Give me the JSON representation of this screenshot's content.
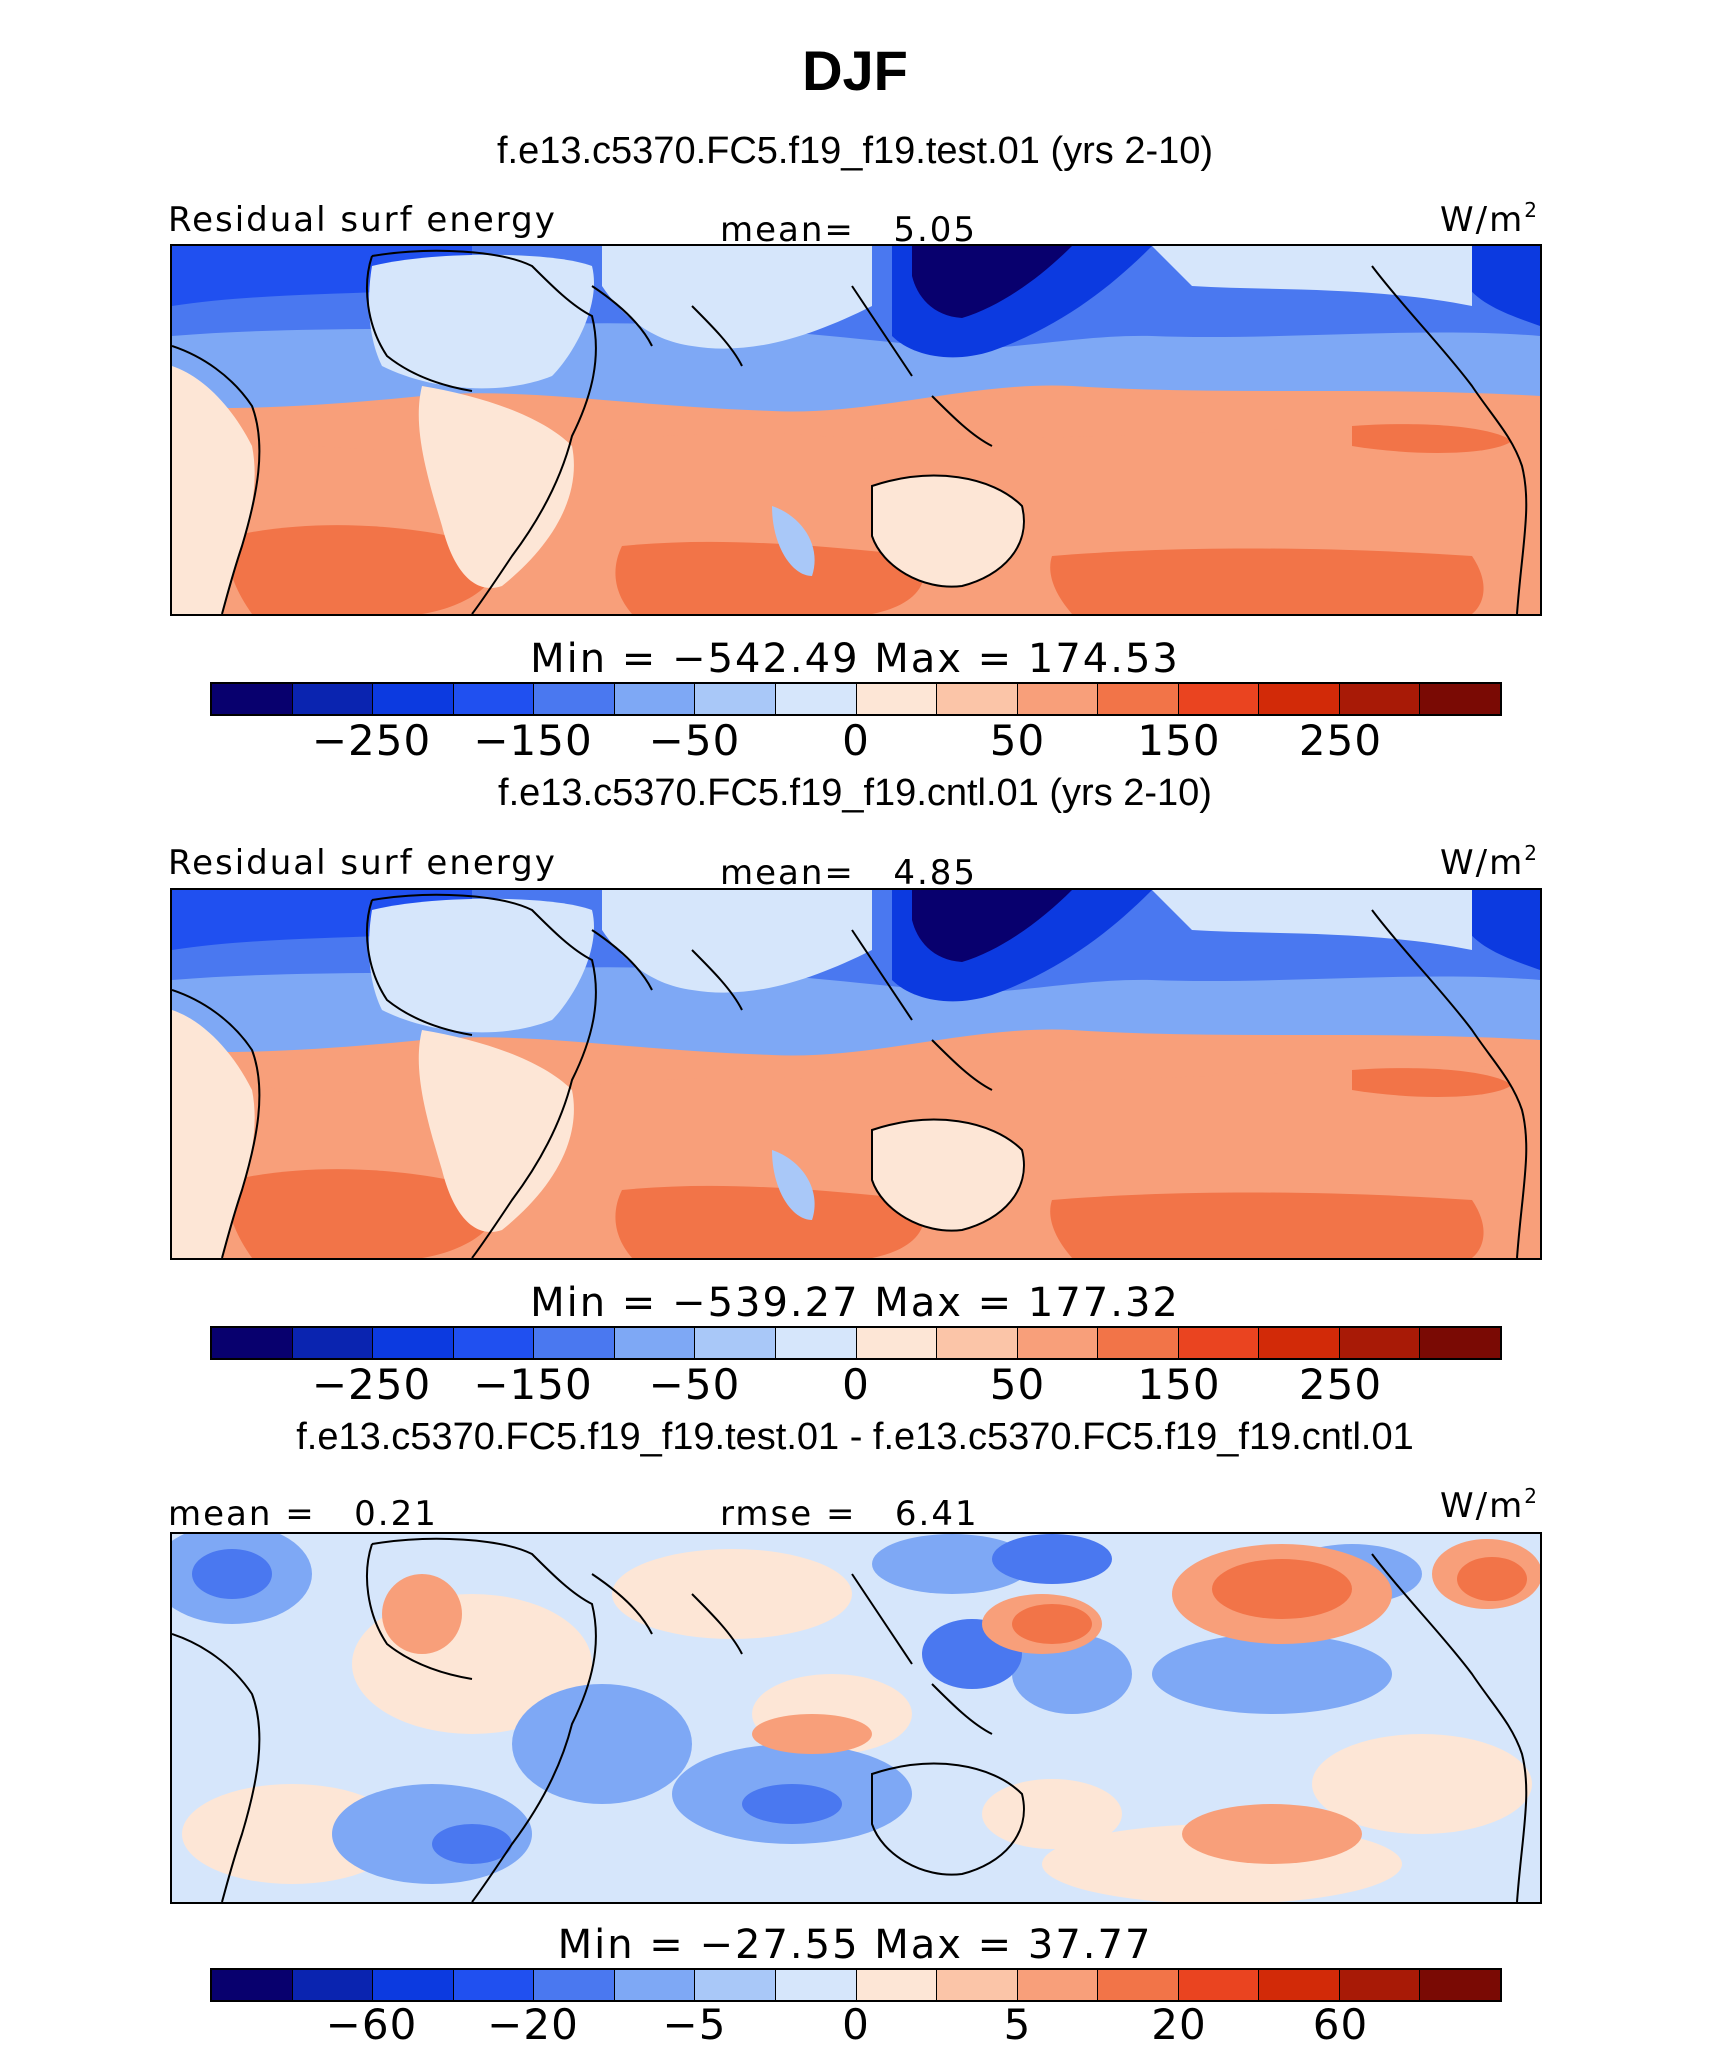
{
  "figure_title": "DJF",
  "units": "W/m",
  "units_sup": "2",
  "colors": [
    "#08006e",
    "#0a24b0",
    "#0c3ae0",
    "#2050f0",
    "#4a78f0",
    "#7ea8f5",
    "#a9c8f8",
    "#d6e6fb",
    "#fde6d6",
    "#fbc5a8",
    "#f89f7a",
    "#f27448",
    "#ea4420",
    "#d22a08",
    "#a81a06",
    "#7a0a04"
  ],
  "panels": [
    {
      "case_title": "f.e13.c5370.FC5.f19_f19.test.01 (yrs 2-10)",
      "left_label": "Residual surf energy",
      "center_label": "mean=",
      "center_value": "5.05",
      "min_label": "Min",
      "min_value": "−542.49",
      "max_label": "Max",
      "max_value": "174.53",
      "colorbar_ticks": [
        "−250",
        "−150",
        "−50",
        "0",
        "50",
        "150",
        "250"
      ]
    },
    {
      "case_title": "f.e13.c5370.FC5.f19_f19.cntl.01 (yrs 2-10)",
      "left_label": "Residual surf energy",
      "center_label": "mean=",
      "center_value": "4.85",
      "min_label": "Min",
      "min_value": "−539.27",
      "max_label": "Max",
      "max_value": "177.32",
      "colorbar_ticks": [
        "−250",
        "−150",
        "−50",
        "0",
        "50",
        "150",
        "250"
      ]
    },
    {
      "case_title": "f.e13.c5370.FC5.f19_f19.test.01 - f.e13.c5370.FC5.f19_f19.cntl.01",
      "left_label": "mean =",
      "left_value": "0.21",
      "center_label": "rmse =",
      "center_value": "6.41",
      "min_label": "Min",
      "min_value": "−27.55",
      "max_label": "Max",
      "max_value": "37.77",
      "colorbar_ticks": [
        "−60",
        "−20",
        "−5",
        "0",
        "5",
        "20",
        "60"
      ]
    }
  ]
}
